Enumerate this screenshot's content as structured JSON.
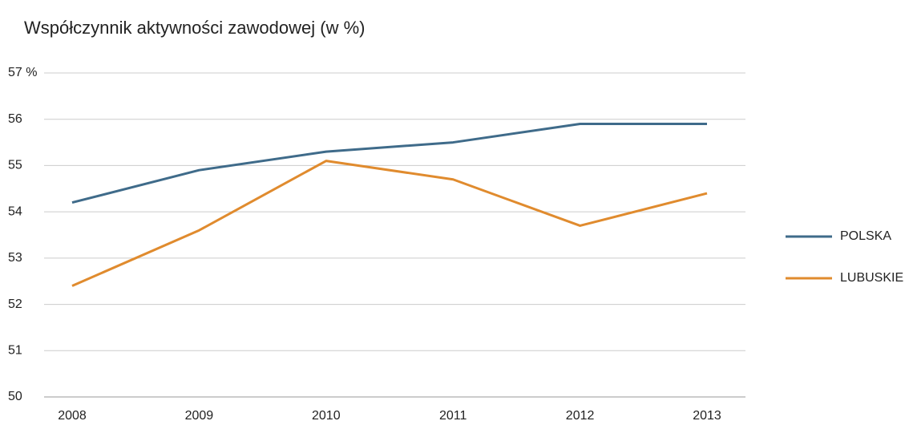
{
  "chart_data": {
    "type": "line",
    "title": "Współczynnik aktywności zawodowej (w %)",
    "categories": [
      "2008",
      "2009",
      "2010",
      "2011",
      "2012",
      "2013"
    ],
    "series": [
      {
        "name": "POLSKA",
        "color": "#3f6b8a",
        "values": [
          54.2,
          54.9,
          55.3,
          55.5,
          55.9,
          55.9
        ]
      },
      {
        "name": "LUBUSKIE",
        "color": "#e08b2e",
        "values": [
          52.4,
          53.6,
          55.1,
          54.7,
          53.7,
          54.4
        ]
      }
    ],
    "ylim": [
      50,
      57
    ],
    "yticks": [
      50,
      51,
      52,
      53,
      54,
      55,
      56,
      {
        "value": 57,
        "label": "57 %"
      }
    ],
    "grid": true,
    "legend": "right"
  }
}
